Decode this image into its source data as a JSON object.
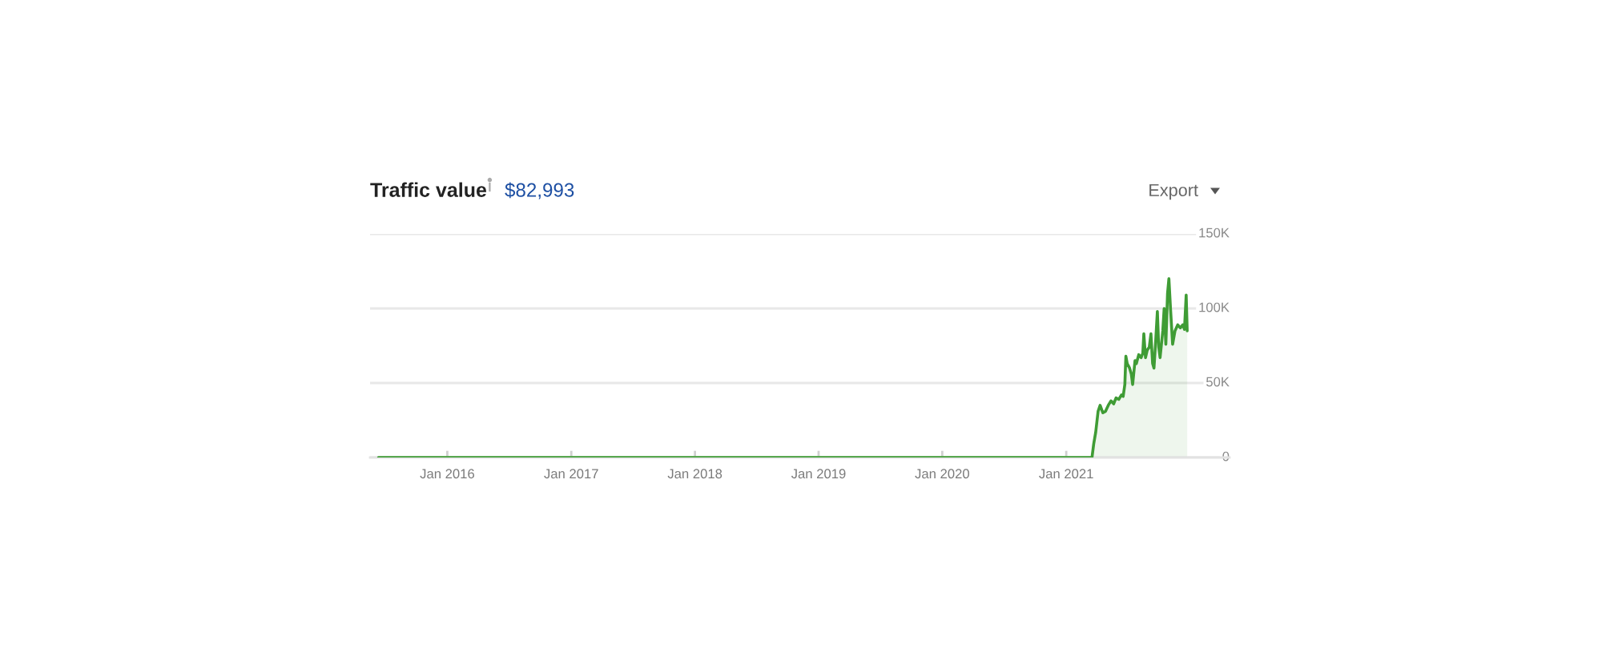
{
  "chart_data": {
    "type": "area",
    "title": "Traffic value",
    "subtitle": "$82,993",
    "annotations": [
      "Export"
    ],
    "x": [
      "2015-06-12",
      "2021-03-18",
      "2021-03-23",
      "2021-03-29",
      "2021-04-05",
      "2021-04-11",
      "2021-04-19",
      "2021-04-27",
      "2021-05-05",
      "2021-05-13",
      "2021-05-21",
      "2021-05-28",
      "2021-06-05",
      "2021-06-13",
      "2021-06-18",
      "2021-06-23",
      "2021-06-26",
      "2021-06-30",
      "2021-07-07",
      "2021-07-12",
      "2021-07-16",
      "2021-07-23",
      "2021-07-27",
      "2021-08-03",
      "2021-08-10",
      "2021-08-15",
      "2021-08-18",
      "2021-08-23",
      "2021-08-28",
      "2021-09-03",
      "2021-09-08",
      "2021-09-13",
      "2021-09-17",
      "2021-09-22",
      "2021-09-27",
      "2021-10-01",
      "2021-10-05",
      "2021-10-13",
      "2021-10-17",
      "2021-10-22",
      "2021-10-27",
      "2021-10-31",
      "2021-11-05",
      "2021-11-11",
      "2021-11-18",
      "2021-11-26",
      "2021-12-04",
      "2021-12-11",
      "2021-12-16",
      "2021-12-21",
      "2021-12-24"
    ],
    "values": [
      0,
      0,
      9000,
      17000,
      31000,
      35000,
      30000,
      31000,
      35000,
      38000,
      36000,
      40000,
      39000,
      42000,
      41000,
      49000,
      68000,
      63000,
      60000,
      56000,
      49000,
      65000,
      63000,
      69000,
      67000,
      70000,
      83000,
      67000,
      72000,
      74000,
      83000,
      63000,
      60000,
      78000,
      98000,
      74000,
      67000,
      85000,
      100000,
      76000,
      110000,
      120000,
      99000,
      76000,
      85000,
      89000,
      87000,
      89000,
      86000,
      109000,
      85000
    ],
    "color": "#3f9c35",
    "xlim": [
      "2015-05-18",
      "2022-04-28"
    ],
    "xticks": [
      {
        "value": "2016-01",
        "label": "Jan 2016"
      },
      {
        "value": "2017-01",
        "label": "Jan 2017"
      },
      {
        "value": "2018-01",
        "label": "Jan 2018"
      },
      {
        "value": "2019-01",
        "label": "Jan 2019"
      },
      {
        "value": "2020-01",
        "label": "Jan 2020"
      },
      {
        "value": "2021-01",
        "label": "Jan 2021"
      }
    ],
    "ylim": [
      0,
      150000
    ],
    "yticks": [
      0,
      {
        "value": 50000,
        "label": "50K"
      },
      {
        "value": 100000,
        "label": "100K"
      },
      {
        "value": 150000,
        "label": "150K"
      }
    ],
    "grid": "y",
    "legend": false,
    "marker": "none",
    "line_style": "solid"
  }
}
